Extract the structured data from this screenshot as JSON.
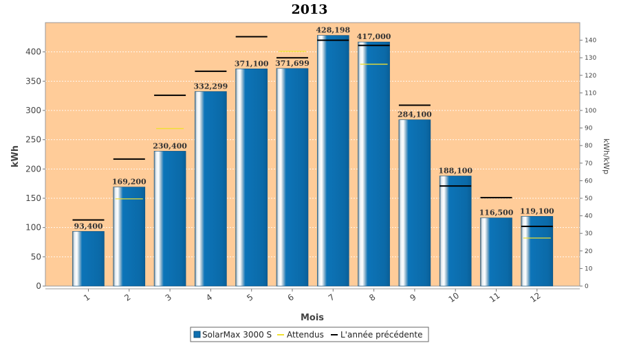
{
  "chart_data": {
    "type": "bar",
    "title": "2013",
    "xlabel": "Mois",
    "ylabel": "kWh",
    "y2label": "kWh/kWp",
    "ylim": [
      0,
      450
    ],
    "y2lim": [
      0,
      150
    ],
    "yticks": [
      0,
      50,
      100,
      150,
      200,
      250,
      300,
      350,
      400
    ],
    "y2ticks": [
      0,
      10,
      20,
      30,
      40,
      50,
      60,
      70,
      80,
      90,
      100,
      110,
      120,
      130,
      140
    ],
    "categories": [
      "1",
      "2",
      "3",
      "4",
      "5",
      "6",
      "7",
      "8",
      "9",
      "10",
      "11",
      "12"
    ],
    "series": [
      {
        "name": "SolarMax 3000 S",
        "kind": "bar",
        "color": "#0d6fb0",
        "values": [
          93.4,
          169.2,
          230.4,
          332.299,
          371.1,
          371.699,
          428.198,
          417.0,
          284.1,
          188.1,
          116.5,
          119.1
        ],
        "labels": [
          "93,400",
          "169,200",
          "230,400",
          "332,299",
          "371,100",
          "371,699",
          "428,198",
          "417,000",
          "284,100",
          "188,100",
          "116,500",
          "119,100"
        ]
      },
      {
        "name": "Attendus",
        "kind": "marker",
        "color": "#f0e030",
        "values": [
          null,
          149,
          269,
          null,
          null,
          401,
          null,
          379,
          null,
          null,
          null,
          82
        ]
      },
      {
        "name": "L'année précédente",
        "kind": "marker",
        "color": "#000000",
        "values": [
          113,
          217,
          326,
          367,
          426,
          390,
          420,
          411,
          309,
          171,
          151,
          102
        ]
      }
    ],
    "background_color": "#ffcc99",
    "grid": true,
    "legend_position": "bottom"
  }
}
